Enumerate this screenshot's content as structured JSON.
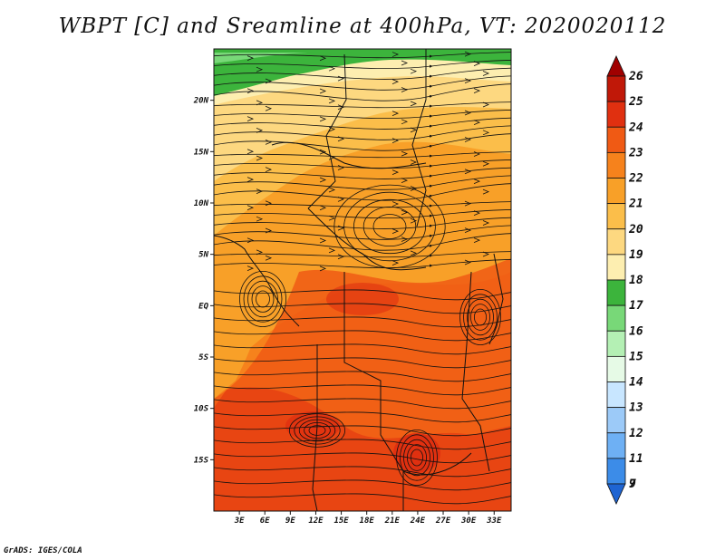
{
  "title": "WBPT [C] and Sreamline at 400hPa, VT: 2020020112",
  "credit": "GrADS: IGES/COLA",
  "map": {
    "variable": "Wet-bulb potential temperature",
    "units": "C",
    "level": "400hPa",
    "valid_time": "2020020112",
    "lon_range": [
      0,
      35
    ],
    "lat_range": [
      -20,
      25
    ],
    "lat_ticks": [
      {
        "value": 20,
        "label": "20N"
      },
      {
        "value": 15,
        "label": "15N"
      },
      {
        "value": 10,
        "label": "10N"
      },
      {
        "value": 5,
        "label": "5N"
      },
      {
        "value": 0,
        "label": "EQ"
      },
      {
        "value": -5,
        "label": "5S"
      },
      {
        "value": -10,
        "label": "10S"
      },
      {
        "value": -15,
        "label": "15S"
      }
    ],
    "lon_ticks": [
      {
        "value": 3,
        "label": "3E"
      },
      {
        "value": 6,
        "label": "6E"
      },
      {
        "value": 9,
        "label": "9E"
      },
      {
        "value": 12,
        "label": "12E"
      },
      {
        "value": 15,
        "label": "15E"
      },
      {
        "value": 18,
        "label": "18E"
      },
      {
        "value": 21,
        "label": "21E"
      },
      {
        "value": 24,
        "label": "24E"
      },
      {
        "value": 27,
        "label": "27E"
      },
      {
        "value": 30,
        "label": "30E"
      },
      {
        "value": 33,
        "label": "33E"
      }
    ]
  },
  "colorbar": {
    "levels": [
      {
        "label": "26",
        "color": "#a00000"
      },
      {
        "label": "25",
        "color": "#c01808"
      },
      {
        "label": "24",
        "color": "#e03010"
      },
      {
        "label": "23",
        "color": "#f05a14"
      },
      {
        "label": "22",
        "color": "#f6821c"
      },
      {
        "label": "21",
        "color": "#f8a028"
      },
      {
        "label": "20",
        "color": "#fbbe4a"
      },
      {
        "label": "19",
        "color": "#fdd880"
      },
      {
        "label": "18",
        "color": "#fdeeb0"
      },
      {
        "label": "17",
        "color": "#3cb43c"
      },
      {
        "label": "16",
        "color": "#78d878"
      },
      {
        "label": "15",
        "color": "#b4f0b4"
      },
      {
        "label": "14",
        "color": "#e6fae6"
      },
      {
        "label": "13",
        "color": "#c8e6ff"
      },
      {
        "label": "12",
        "color": "#9ccaf8"
      },
      {
        "label": "11",
        "color": "#6eb0f4"
      },
      {
        "label": "9",
        "color": "#3c8ce8"
      },
      {
        "label": "7",
        "color": "#1e64d2"
      }
    ]
  }
}
